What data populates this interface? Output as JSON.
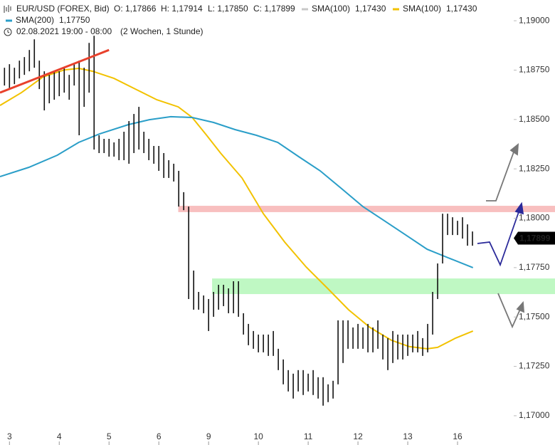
{
  "chart_data": {
    "type": "range-bar",
    "header": {
      "symbol": "EUR/USD (FOREX, Bid)",
      "open": "O: 1,17866",
      "high": "H: 1,17914",
      "low": "L: 1,17850",
      "close": "C: 1,17899",
      "period": "02.08.2021 19:00 - 08:00",
      "span": "(2 Wochen, 1 Stunde)"
    },
    "color": "#111111",
    "x": [
      -0.1,
      0,
      0.1,
      0.2,
      0.3,
      0.4,
      0.5,
      0.6,
      0.7,
      0.8,
      0.9,
      1,
      1.1,
      1.2,
      1.3,
      1.4,
      1.5,
      1.6,
      1.7,
      1.8,
      1.9,
      2,
      2.1,
      2.2,
      2.3,
      2.4,
      2.5,
      2.6,
      2.7,
      2.8,
      2.9,
      3,
      3.1,
      3.2,
      3.3,
      3.4,
      3.5,
      3.6,
      3.7,
      3.8,
      3.9,
      4,
      4.1,
      4.2,
      4.3,
      4.4,
      4.5,
      4.6,
      4.7,
      4.8,
      4.9,
      5,
      5.1,
      5.2,
      5.3,
      5.4,
      5.5,
      5.6,
      5.7,
      5.8,
      5.9,
      6,
      6.1,
      6.2,
      6.3,
      6.4,
      6.5,
      6.6,
      6.7,
      6.8,
      6.9,
      7,
      7.1,
      7.2,
      7.3,
      7.4,
      7.5,
      7.6,
      7.7,
      7.8,
      7.9,
      8,
      8.1,
      8.2,
      8.3,
      8.4,
      8.5,
      8.6,
      8.7,
      8.8,
      8.9,
      9,
      9.1,
      9.2,
      9.3
    ],
    "high": [
      1.18762,
      1.1878,
      1.18762,
      1.18798,
      1.18816,
      1.18852,
      1.18906,
      1.18798,
      1.18744,
      1.18726,
      1.18744,
      1.18744,
      1.18762,
      1.18726,
      1.1878,
      1.18798,
      1.18762,
      1.18888,
      1.18924,
      1.1842,
      1.18402,
      1.18402,
      1.18384,
      1.18402,
      1.18438,
      1.18492,
      1.18528,
      1.18564,
      1.18438,
      1.18402,
      1.18366,
      1.18366,
      1.1833,
      1.18294,
      1.18276,
      1.1824,
      1.18132,
      1.18059,
      1.17735,
      1.17627,
      1.17609,
      1.17591,
      1.17627,
      1.17663,
      1.17663,
      1.17645,
      1.17681,
      1.17681,
      1.17519,
      1.17465,
      1.17429,
      1.17411,
      1.17411,
      1.17411,
      1.17429,
      1.17339,
      1.17285,
      1.17231,
      1.17213,
      1.17231,
      1.17231,
      1.17213,
      1.17231,
      1.17195,
      1.17195,
      1.17159,
      1.17177,
      1.17483,
      1.17483,
      1.17483,
      1.17447,
      1.17465,
      1.17447,
      1.17465,
      1.17447,
      1.17483,
      1.17411,
      1.17393,
      1.17429,
      1.17411,
      1.17411,
      1.17411,
      1.17411,
      1.17429,
      1.17393,
      1.17465,
      1.17627,
      1.17771,
      1.18023,
      1.18023,
      1.18005,
      1.17987,
      1.18005,
      1.17969,
      1.17933
    ],
    "low": [
      1.18672,
      1.18654,
      1.18679,
      1.18708,
      1.18726,
      1.18744,
      1.18762,
      1.18654,
      1.18546,
      1.18582,
      1.186,
      1.18618,
      1.18636,
      1.186,
      1.18672,
      1.1842,
      1.18564,
      1.18636,
      1.18348,
      1.1833,
      1.1833,
      1.18312,
      1.18312,
      1.18294,
      1.18294,
      1.18276,
      1.1833,
      1.18348,
      1.1833,
      1.18294,
      1.18276,
      1.1824,
      1.18204,
      1.18204,
      1.18186,
      1.18059,
      1.18041,
      1.17591,
      1.17537,
      1.17537,
      1.17519,
      1.17429,
      1.17501,
      1.17537,
      1.17555,
      1.17519,
      1.17519,
      1.17501,
      1.17411,
      1.17357,
      1.17339,
      1.17321,
      1.17321,
      1.17303,
      1.17303,
      1.17231,
      1.17159,
      1.17123,
      1.17087,
      1.17123,
      1.17105,
      1.17123,
      1.17105,
      1.17087,
      1.17051,
      1.17069,
      1.17087,
      1.17159,
      1.17267,
      1.17339,
      1.17339,
      1.17339,
      1.17339,
      1.17321,
      1.17321,
      1.17339,
      1.17285,
      1.17231,
      1.17267,
      1.17285,
      1.17285,
      1.17303,
      1.17321,
      1.17321,
      1.17303,
      1.17321,
      1.17411,
      1.17591,
      1.17771,
      1.17915,
      1.17915,
      1.17915,
      1.17897,
      1.17861,
      1.17861
    ],
    "indicators": [
      {
        "name": "SMA(100)",
        "color": "#c8c8c8",
        "label": "1,17430"
      },
      {
        "name": "SMA(100)",
        "color": "#f2c200",
        "label": "1,17430",
        "x": [
          -0.19,
          0.24,
          0.67,
          1.1,
          1.39,
          1.67,
          2.1,
          2.53,
          2.96,
          3.39,
          3.67,
          3.96,
          4.24,
          4.67,
          5.1,
          5.53,
          5.96,
          6.39,
          6.81,
          7.24,
          7.67,
          8.03,
          8.39,
          8.6,
          8.96,
          9.31
        ],
        "values": [
          1.18571,
          1.18636,
          1.18715,
          1.18751,
          1.18759,
          1.18744,
          1.18708,
          1.18654,
          1.186,
          1.18564,
          1.1851,
          1.1842,
          1.1833,
          1.18204,
          1.18023,
          1.17879,
          1.17753,
          1.17645,
          1.17537,
          1.17447,
          1.17382,
          1.1735,
          1.17339,
          1.17346,
          1.17393,
          1.17429
        ]
      },
      {
        "name": "SMA(200)",
        "color": "#2a9ec8",
        "label": "1,17750",
        "x": [
          -0.19,
          0.39,
          0.96,
          1.39,
          1.81,
          2.39,
          2.81,
          3.24,
          3.67,
          4.1,
          4.53,
          4.96,
          5.39,
          5.81,
          6.24,
          6.67,
          7.1,
          7.53,
          7.96,
          8.39,
          8.81,
          9.31
        ],
        "values": [
          1.18211,
          1.18258,
          1.18319,
          1.18384,
          1.18427,
          1.18474,
          1.18499,
          1.18514,
          1.1851,
          1.18485,
          1.18449,
          1.1842,
          1.18384,
          1.18312,
          1.1824,
          1.1815,
          1.18059,
          1.17987,
          1.17915,
          1.17843,
          1.178,
          1.1775
        ]
      }
    ],
    "trendline": {
      "color": "#e8412c",
      "x": [
        -0.19,
        2.0
      ],
      "values": [
        1.18636,
        1.18852
      ]
    },
    "zones": [
      {
        "color": "#f7b4b4",
        "x0": 3.39,
        "values": [
          1.18063,
          1.18031
        ]
      },
      {
        "color": "#b4f7b8",
        "x0": 4.07,
        "values": [
          1.17695,
          1.17616
        ]
      }
    ],
    "last_price": {
      "value": 1.17899,
      "label": "1,17899"
    },
    "xlim": [
      -0.19,
      10.1
    ],
    "ylim": [
      1.16942,
      1.19105
    ],
    "xticks": [
      {
        "value": 0,
        "label": "3"
      },
      {
        "value": 1,
        "label": "4"
      },
      {
        "value": 2,
        "label": "5"
      },
      {
        "value": 3,
        "label": "6"
      },
      {
        "value": 4,
        "label": "9"
      },
      {
        "value": 5,
        "label": "10"
      },
      {
        "value": 6,
        "label": "11"
      },
      {
        "value": 7,
        "label": "12"
      },
      {
        "value": 8,
        "label": "13"
      },
      {
        "value": 9,
        "label": "16"
      }
    ],
    "yticks": [
      {
        "value": 1.19,
        "label": "1,19000"
      },
      {
        "value": 1.1875,
        "label": "1,18750"
      },
      {
        "value": 1.185,
        "label": "1,18500"
      },
      {
        "value": 1.1825,
        "label": "1,18250"
      },
      {
        "value": 1.18,
        "label": "1,18000"
      },
      {
        "value": 1.1775,
        "label": "1,17750"
      },
      {
        "value": 1.175,
        "label": "1,17500"
      },
      {
        "value": 1.1725,
        "label": "1,17250"
      },
      {
        "value": 1.17,
        "label": "1,17000"
      }
    ]
  }
}
